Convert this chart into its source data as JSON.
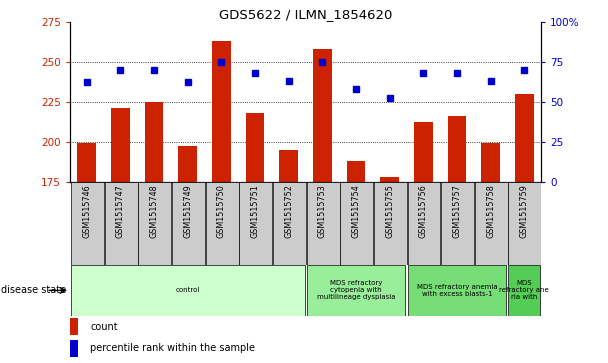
{
  "title": "GDS5622 / ILMN_1854620",
  "samples": [
    "GSM1515746",
    "GSM1515747",
    "GSM1515748",
    "GSM1515749",
    "GSM1515750",
    "GSM1515751",
    "GSM1515752",
    "GSM1515753",
    "GSM1515754",
    "GSM1515755",
    "GSM1515756",
    "GSM1515757",
    "GSM1515758",
    "GSM1515759"
  ],
  "counts": [
    199,
    221,
    225,
    197,
    263,
    218,
    195,
    258,
    188,
    178,
    212,
    216,
    199,
    230
  ],
  "percentiles": [
    62,
    70,
    70,
    62,
    75,
    68,
    63,
    75,
    58,
    52,
    68,
    68,
    63,
    70
  ],
  "ylim_left": [
    175,
    275
  ],
  "ylim_right": [
    0,
    100
  ],
  "yticks_left": [
    175,
    200,
    225,
    250,
    275
  ],
  "yticks_right": [
    0,
    25,
    50,
    75,
    100
  ],
  "bar_color": "#cc2200",
  "dot_color": "#0000cc",
  "tick_label_color_left": "#cc2200",
  "tick_label_color_right": "#0000cc",
  "disease_groups": [
    {
      "label": "control",
      "start": 0,
      "end": 7,
      "color": "#ccffcc"
    },
    {
      "label": "MDS refractory\ncytopenia with\nmultilineage dysplasia",
      "start": 7,
      "end": 10,
      "color": "#99ee99"
    },
    {
      "label": "MDS refractory anemia\nwith excess blasts-1",
      "start": 10,
      "end": 13,
      "color": "#77dd77"
    },
    {
      "label": "MDS\nrefractory ane\nria with",
      "start": 13,
      "end": 14,
      "color": "#55cc55"
    }
  ],
  "legend_count_label": "count",
  "legend_pct_label": "percentile rank within the sample",
  "disease_state_label": "disease state",
  "sample_box_color": "#cccccc",
  "grid_dotted_vals": [
    200,
    225,
    250
  ]
}
